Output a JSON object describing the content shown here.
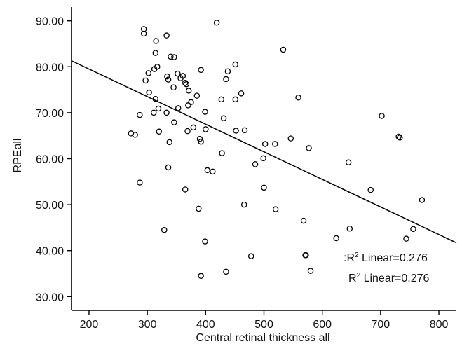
{
  "chart_data": {
    "type": "scatter",
    "title": "",
    "xlabel": "Central retinal thickness all",
    "ylabel": "RPEall",
    "xlim": [
      170,
      830
    ],
    "ylim": [
      27,
      93
    ],
    "x_ticks": [
      200,
      300,
      400,
      500,
      600,
      700,
      800
    ],
    "x_tick_labels": [
      "200",
      "300",
      "400",
      "500",
      "600",
      "700",
      "800"
    ],
    "y_ticks": [
      30,
      40,
      50,
      60,
      70,
      80,
      90
    ],
    "y_tick_labels": [
      "30.00",
      "40.00",
      "50.00",
      "60.00",
      "70.00",
      "80.00",
      "90.00"
    ],
    "grid": false,
    "fit_line": {
      "x": [
        170,
        830
      ],
      "y": [
        81.3,
        41.7
      ]
    },
    "annotations": [
      {
        "prefix": ":R",
        "sup": "2",
        "suffix": " Linear=0.276"
      },
      {
        "prefix": "R",
        "sup": "2",
        "suffix": " Linear=0.276"
      }
    ],
    "points": [
      [
        294,
        88.2
      ],
      [
        294,
        87.2
      ],
      [
        333,
        86.8
      ],
      [
        315,
        85.6
      ],
      [
        314,
        83.0
      ],
      [
        340,
        82.2
      ],
      [
        346,
        82.1
      ],
      [
        317,
        80.0
      ],
      [
        312,
        79.5
      ],
      [
        297,
        77.0
      ],
      [
        302,
        78.6
      ],
      [
        334,
        77.9
      ],
      [
        336,
        77.2
      ],
      [
        352,
        78.5
      ],
      [
        357,
        77.5
      ],
      [
        361,
        78.0
      ],
      [
        365,
        76.5
      ],
      [
        367,
        76.2
      ],
      [
        371,
        74.8
      ],
      [
        303,
        74.4
      ],
      [
        345,
        75.5
      ],
      [
        314,
        73.0
      ],
      [
        319,
        70.9
      ],
      [
        311,
        70.0
      ],
      [
        333,
        70.0
      ],
      [
        353,
        71.0
      ],
      [
        370,
        71.6
      ],
      [
        375,
        72.3
      ],
      [
        385,
        73.7
      ],
      [
        392,
        79.3
      ],
      [
        287,
        69.5
      ],
      [
        272,
        65.5
      ],
      [
        279,
        65.2
      ],
      [
        320,
        65.9
      ],
      [
        338,
        63.6
      ],
      [
        346,
        67.9
      ],
      [
        369,
        66.0
      ],
      [
        379,
        66.8
      ],
      [
        390,
        64.3
      ],
      [
        392,
        63.7
      ],
      [
        399,
        70.2
      ],
      [
        400,
        66.4
      ],
      [
        419,
        89.6
      ],
      [
        435,
        77.3
      ],
      [
        438,
        79.0
      ],
      [
        451,
        80.5
      ],
      [
        427,
        72.9
      ],
      [
        451,
        72.9
      ],
      [
        461,
        74.2
      ],
      [
        431,
        68.8
      ],
      [
        452,
        66.1
      ],
      [
        467,
        66.2
      ],
      [
        403,
        57.5
      ],
      [
        412,
        57.2
      ],
      [
        428,
        61.2
      ],
      [
        485,
        58.8
      ],
      [
        499,
        60.1
      ],
      [
        502,
        63.2
      ],
      [
        519,
        63.2
      ],
      [
        533,
        83.7
      ],
      [
        546,
        64.4
      ],
      [
        559,
        73.3
      ],
      [
        577,
        62.3
      ],
      [
        287,
        54.8
      ],
      [
        336,
        58.1
      ],
      [
        365,
        53.3
      ],
      [
        329,
        44.5
      ],
      [
        388,
        49.1
      ],
      [
        399,
        42.0
      ],
      [
        392,
        34.5
      ],
      [
        435,
        35.4
      ],
      [
        466,
        50.0
      ],
      [
        478,
        38.8
      ],
      [
        500,
        53.7
      ],
      [
        520,
        49.0
      ],
      [
        568,
        46.5
      ],
      [
        571,
        39.0
      ],
      [
        572,
        39.0
      ],
      [
        580,
        35.6
      ],
      [
        624,
        42.7
      ],
      [
        645,
        59.2
      ],
      [
        647,
        44.8
      ],
      [
        683,
        53.2
      ],
      [
        702,
        69.3
      ],
      [
        731,
        64.8
      ],
      [
        733,
        64.6
      ],
      [
        744,
        42.6
      ],
      [
        756,
        44.7
      ],
      [
        771,
        51.0
      ]
    ]
  }
}
